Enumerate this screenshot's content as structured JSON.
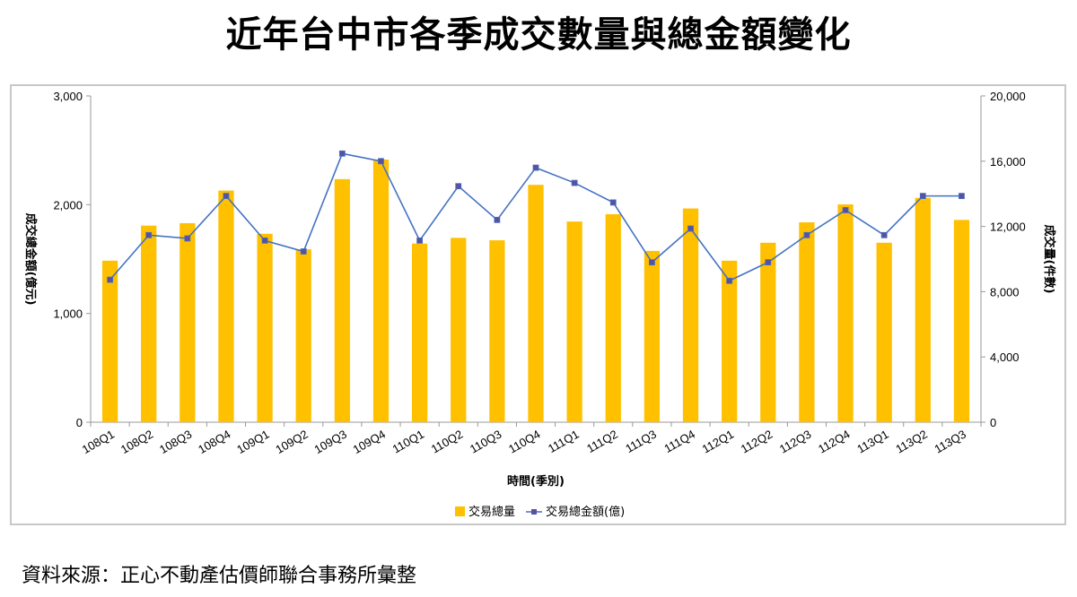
{
  "title": "近年台中市各季成交數量與總金額變化",
  "source": "資料來源：正心不動產估價師聯合事務所彙整",
  "colors": {
    "bar": "#FFC000",
    "line": "#4472C4",
    "marker": "#5B4FA0",
    "axis": "#999999"
  },
  "chart_data": {
    "type": "bar+line",
    "categories": [
      "108Q1",
      "108Q2",
      "108Q3",
      "108Q4",
      "109Q1",
      "109Q2",
      "109Q3",
      "109Q4",
      "110Q1",
      "110Q2",
      "110Q3",
      "110Q4",
      "111Q1",
      "111Q2",
      "111Q3",
      "111Q4",
      "112Q1",
      "112Q2",
      "112Q3",
      "112Q4",
      "113Q1",
      "113Q2",
      "113Q3"
    ],
    "series": [
      {
        "name": "交易總量",
        "type": "bar",
        "axis": "right",
        "values": [
          9900,
          12050,
          12200,
          14200,
          11550,
          10600,
          14900,
          16100,
          10950,
          11300,
          11150,
          14550,
          12300,
          12750,
          10500,
          13100,
          9900,
          11000,
          12250,
          13350,
          11000,
          13750,
          12400
        ]
      },
      {
        "name": "交易總金額(億)",
        "type": "line",
        "axis": "left",
        "values": [
          1310,
          1720,
          1690,
          2080,
          1670,
          1570,
          2470,
          2400,
          1670,
          2170,
          1860,
          2340,
          2200,
          2020,
          1470,
          1780,
          1300,
          1470,
          1720,
          1950,
          1720,
          2080,
          2080
        ]
      }
    ],
    "xlabel": "時間(季別)",
    "ylabel_left": "成交總金額(億元)",
    "ylabel_right": "成交量(件數)",
    "ylim_left": [
      0,
      3000
    ],
    "yticks_left": [
      "0",
      "1,000",
      "2,000",
      "3,000"
    ],
    "ylim_right": [
      0,
      20000
    ],
    "yticks_right": [
      "0",
      "4,000",
      "8,000",
      "12,000",
      "16,000",
      "20,000"
    ],
    "legend_position": "bottom",
    "grid": false
  }
}
